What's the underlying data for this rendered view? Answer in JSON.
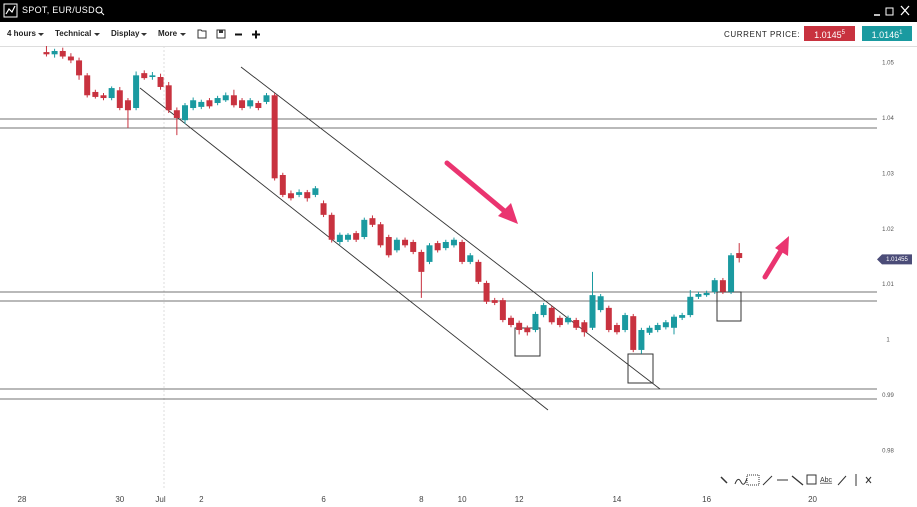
{
  "window": {
    "title": "SPOT, EUR/USD"
  },
  "toolbar": {
    "interval": "4 hours",
    "technical": "Technical",
    "display": "Display",
    "more": "More",
    "current_price_label": "CURRENT PRICE:",
    "sell_price": "1.0145",
    "sell_pip": "5",
    "buy_price": "1.0146",
    "buy_pip": "1"
  },
  "drawing_tools": {
    "text_tool": "Abc"
  },
  "chart_data": {
    "type": "candlestick",
    "categories": [
      "28",
      null,
      null,
      null,
      null,
      null,
      null,
      null,
      null,
      null,
      null,
      null,
      "30",
      null,
      null,
      null,
      null,
      "Jul",
      null,
      null,
      null,
      null,
      "2",
      null,
      null,
      null,
      null,
      null,
      null,
      null,
      null,
      null,
      null,
      null,
      null,
      null,
      null,
      "6",
      null,
      null,
      null,
      null,
      null,
      null,
      null,
      null,
      null,
      null,
      null,
      "8",
      null,
      null,
      null,
      null,
      "10",
      null,
      null,
      null,
      null,
      null,
      null,
      "12",
      null,
      null,
      null,
      null,
      null,
      null,
      null,
      null,
      null,
      null,
      null,
      "14",
      null,
      null,
      null,
      null,
      null,
      null,
      null,
      null,
      null,
      null,
      "16",
      null,
      null,
      null,
      null,
      null,
      null,
      null,
      null,
      null,
      null,
      null,
      null,
      "20",
      null,
      null,
      null,
      null,
      null,
      null
    ],
    "open": [
      null,
      null,
      null,
      1.052,
      1.0516,
      1.0522,
      1.0512,
      1.0505,
      1.0478,
      1.0448,
      1.0442,
      1.0437,
      1.0451,
      1.0433,
      1.0419,
      1.0482,
      1.0475,
      1.0475,
      1.046,
      1.0415,
      1.0397,
      1.0419,
      1.0421,
      1.0433,
      1.0428,
      1.0433,
      1.0442,
      1.0433,
      1.0422,
      1.0428,
      1.043,
      1.0442,
      1.0298,
      1.0265,
      1.0262,
      1.0267,
      1.0262,
      1.0247,
      1.0226,
      1.0177,
      1.0181,
      1.0193,
      1.0186,
      1.022,
      1.0209,
      1.0186,
      1.0162,
      1.0181,
      1.0177,
      1.0159,
      1.0141,
      1.0175,
      1.0166,
      1.0171,
      1.0177,
      1.0141,
      1.0141,
      1.0103,
      1.0072,
      1.0072,
      1.004,
      1.0031,
      1.0022,
      1.0018,
      1.0045,
      1.0058,
      1.004,
      1.0032,
      1.0036,
      1.0032,
      1.0022,
      1.0054,
      1.0058,
      1.0027,
      1.0018,
      1.0043,
      0.9982,
      1.0013,
      1.0018,
      1.0023,
      1.0022,
      1.004,
      1.0045,
      1.0078,
      1.0081,
      1.0087,
      1.0108,
      1.0087,
      1.0157,
      null,
      null,
      null,
      null,
      null,
      null,
      null,
      null,
      null,
      null,
      null,
      null,
      null,
      null,
      null
    ],
    "high": [
      null,
      null,
      null,
      1.0531,
      1.0526,
      1.0528,
      1.0518,
      1.051,
      1.0482,
      1.0452,
      1.0446,
      1.0458,
      1.0457,
      1.0437,
      1.0485,
      1.0487,
      1.0484,
      1.0481,
      1.0466,
      1.042,
      1.0428,
      1.0438,
      1.0434,
      1.0437,
      1.0441,
      1.0447,
      1.0452,
      1.0437,
      1.0437,
      1.0432,
      1.0446,
      1.0446,
      1.0302,
      1.027,
      1.0272,
      1.0271,
      1.0278,
      1.0252,
      1.023,
      1.0194,
      1.0193,
      1.0197,
      1.0221,
      1.0225,
      1.0213,
      1.019,
      1.0185,
      1.0185,
      1.0181,
      1.0163,
      1.0175,
      1.0179,
      1.0181,
      1.0185,
      1.0181,
      1.0157,
      1.0145,
      1.0107,
      1.0076,
      1.0076,
      1.0044,
      1.0035,
      1.0026,
      1.0051,
      1.0067,
      1.0062,
      1.0044,
      1.0044,
      1.004,
      1.0036,
      1.0123,
      1.0083,
      1.0062,
      1.0031,
      1.0049,
      1.0047,
      1.0022,
      1.0026,
      1.0031,
      1.0036,
      1.0046,
      1.0049,
      1.009,
      1.0087,
      1.0089,
      1.0112,
      1.0112,
      1.0157,
      1.0175,
      null,
      null,
      null,
      null,
      null,
      null,
      null,
      null,
      null,
      null,
      null,
      null,
      null,
      null,
      null
    ],
    "low": [
      null,
      null,
      null,
      1.0512,
      1.051,
      1.0508,
      1.05,
      1.047,
      1.0438,
      1.0436,
      1.0433,
      1.0433,
      1.0415,
      1.0383,
      1.0415,
      1.047,
      1.047,
      1.0452,
      1.041,
      1.037,
      1.039,
      1.0415,
      1.0417,
      1.0418,
      1.0424,
      1.043,
      1.042,
      1.0415,
      1.0418,
      1.0415,
      1.0426,
      1.0288,
      1.0258,
      1.0252,
      1.0258,
      1.025,
      1.0258,
      1.0222,
      1.0176,
      1.0172,
      1.0177,
      1.0177,
      1.0182,
      1.0204,
      1.0167,
      1.0149,
      1.0158,
      1.0167,
      1.0155,
      1.0076,
      1.0137,
      1.0158,
      1.0162,
      1.0167,
      1.0137,
      1.0137,
      1.0101,
      1.0065,
      1.0063,
      1.0032,
      1.0023,
      1.001,
      1.0008,
      1.0014,
      1.0041,
      1.0028,
      1.0023,
      1.0028,
      1.0018,
      1.0006,
      1.0018,
      1.005,
      1.0014,
      1.001,
      1.0014,
      0.9978,
      0.9975,
      1.0009,
      1.0014,
      1.0019,
      1.001,
      1.0036,
      1.0041,
      1.0074,
      1.0078,
      1.0083,
      1.0083,
      1.0083,
      1.014,
      null,
      null,
      null,
      null,
      null,
      null,
      null,
      null,
      null,
      null,
      null,
      null,
      null,
      null,
      null
    ],
    "close": [
      null,
      null,
      null,
      1.0516,
      1.0522,
      1.0512,
      1.0505,
      1.0478,
      1.0442,
      1.0439,
      1.0437,
      1.0455,
      1.0419,
      1.0415,
      1.0478,
      1.0473,
      1.0478,
      1.0457,
      1.0415,
      1.0401,
      1.0424,
      1.0433,
      1.043,
      1.0422,
      1.0437,
      1.0442,
      1.0424,
      1.0419,
      1.0433,
      1.0419,
      1.0442,
      1.0292,
      1.0262,
      1.0256,
      1.0267,
      1.0256,
      1.0274,
      1.0226,
      1.0181,
      1.019,
      1.019,
      1.0181,
      1.0217,
      1.0208,
      1.0171,
      1.0153,
      1.0181,
      1.0171,
      1.0159,
      1.0123,
      1.0171,
      1.0162,
      1.0177,
      1.0181,
      1.0141,
      1.0153,
      1.0105,
      1.0069,
      1.0067,
      1.0036,
      1.0027,
      1.0018,
      1.0014,
      1.0047,
      1.0063,
      1.0032,
      1.0027,
      1.004,
      1.0022,
      1.0014,
      1.0081,
      1.0079,
      1.0018,
      1.0014,
      1.0045,
      0.9982,
      1.0018,
      1.0022,
      1.0027,
      1.0032,
      1.0042,
      1.0045,
      1.0078,
      1.0083,
      1.0085,
      1.0108,
      1.0087,
      1.0153,
      1.0148,
      null,
      null,
      null,
      null,
      null,
      null,
      null,
      null,
      null,
      null,
      null,
      null,
      null,
      null,
      null
    ],
    "up_color": "#1a9aa0",
    "down_color": "#c8323f",
    "current_price": 1.01455,
    "current_price_color": "#4b4c78",
    "ylim": [
      0.9729,
      1.0531
    ],
    "yticks": [
      0.98,
      0.99,
      1,
      1.01,
      1.02,
      1.03,
      1.04,
      1.05
    ],
    "grid": false
  }
}
